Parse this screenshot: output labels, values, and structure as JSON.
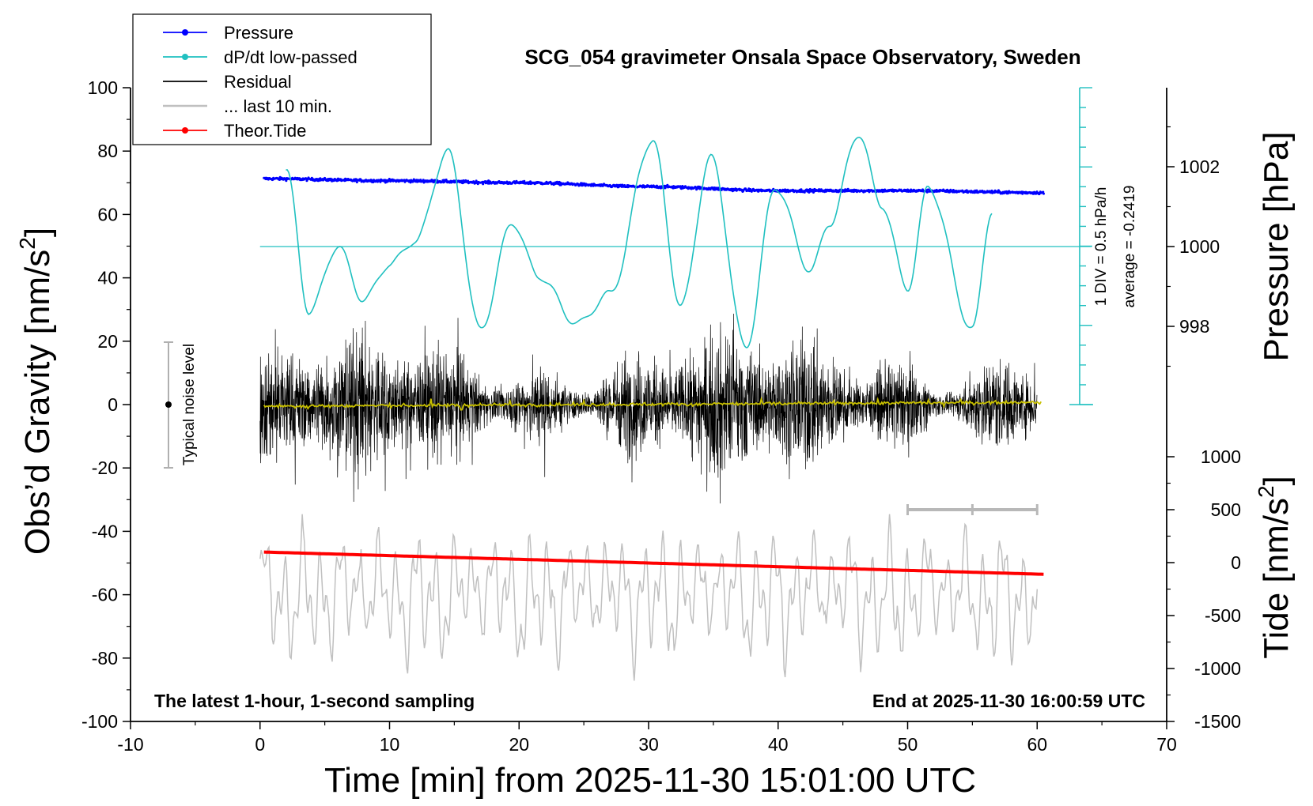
{
  "chart_data": {
    "type": "line",
    "title": "SCG_054 gravimeter Onsala Space Observatory, Sweden",
    "xlabel": "Time [min] from 2025-11-30 15:01:00 UTC",
    "ylabel_left_main": "Obs’d Gravity [nm/s",
    "ylabel_left_sup": "2",
    "ylabel_left_close": "]",
    "ylabel_right_top": "Pressure [hPa]",
    "ylabel_right_bottom_main": "Tide [nm/s",
    "ylabel_right_bottom_sup": "2",
    "ylabel_right_bottom_close": "]",
    "footer_left": "The latest 1-hour, 1-second sampling",
    "footer_right": "End at 2025-11-30 16:00:59 UTC",
    "noise_label": "Typical noise level",
    "scale_label_1": "1 DIV = 0.5 hPa/h",
    "scale_label_2": "average = -0.2419",
    "xlim": [
      -10,
      70
    ],
    "ylim_gravity": [
      -100,
      100
    ],
    "ylim_pressure": [
      996,
      1004
    ],
    "ylim_tide": [
      -1500,
      1500
    ],
    "xticks": [
      "-10",
      "0",
      "10",
      "20",
      "30",
      "40",
      "50",
      "60",
      "70"
    ],
    "yticks_gravity": [
      "100",
      "80",
      "60",
      "40",
      "20",
      "0",
      "-20",
      "-40",
      "-60",
      "-80",
      "-100"
    ],
    "yticks_pressure": [
      "1002",
      "1000",
      "998"
    ],
    "yticks_tide": [
      "1000",
      "500",
      "0",
      "-500",
      "-1000",
      "-1500"
    ],
    "legend": [
      {
        "label": "Pressure",
        "color": "#0000ff",
        "marker": true
      },
      {
        "label": "dP/dt low-passed",
        "color": "#20c0c0",
        "marker": true
      },
      {
        "label": "Residual",
        "color": "#000000",
        "marker": false
      },
      {
        "label": "... last 10 min.",
        "color": "#c0c0c0",
        "marker": false
      },
      {
        "label": "Theor.Tide",
        "color": "#ff0000",
        "marker": true
      }
    ],
    "series": [
      {
        "name": "Pressure",
        "axis": "pressure",
        "color": "#0000ff",
        "x": [
          0.3,
          10,
          20,
          30,
          40,
          50,
          60.5
        ],
        "y": [
          1001.7,
          1001.65,
          1001.6,
          1001.5,
          1001.4,
          1001.4,
          1001.35
        ]
      },
      {
        "name": "dP/dt low-passed",
        "axis": "dpdt",
        "color": "#20c0c0",
        "x": [
          2,
          3.8,
          6,
          8,
          10,
          12,
          14.5,
          17,
          19.5,
          21.5,
          24.5,
          27,
          30.3,
          32.5,
          34.8,
          37.5,
          39.8,
          42.5,
          44,
          46.2,
          48,
          50,
          51.6,
          55,
          56.5
        ],
        "y": [
          0.65,
          -0.55,
          0.0,
          -0.45,
          -0.15,
          0.05,
          0.8,
          -0.7,
          0.2,
          -0.25,
          -0.65,
          -0.4,
          0.9,
          -0.5,
          0.75,
          -0.85,
          0.5,
          -0.2,
          0.2,
          0.95,
          0.35,
          -0.35,
          0.5,
          -0.7,
          0.3
        ]
      },
      {
        "name": "Residual",
        "axis": "gravity",
        "color": "#000000",
        "x": [
          0,
          60
        ],
        "envelope": [
          -25,
          25
        ]
      },
      {
        "name": "... last 10 min.",
        "axis": "tide",
        "color": "#c0c0c0",
        "x": [
          0,
          60
        ],
        "envelope": [
          -1100,
          400
        ]
      },
      {
        "name": "Theor.Tide",
        "axis": "tide",
        "color": "#ff0000",
        "x": [
          0.3,
          60.5
        ],
        "y": [
          100,
          -110
        ]
      }
    ]
  }
}
